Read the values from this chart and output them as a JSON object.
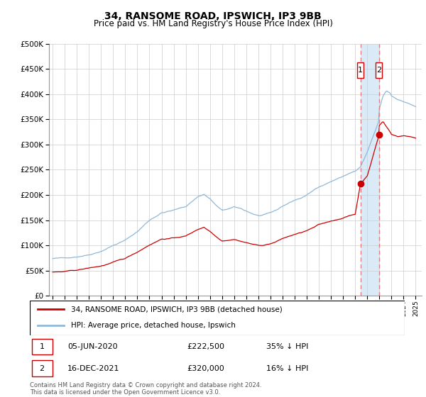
{
  "title": "34, RANSOME ROAD, IPSWICH, IP3 9BB",
  "subtitle": "Price paid vs. HM Land Registry's House Price Index (HPI)",
  "legend_line1": "34, RANSOME ROAD, IPSWICH, IP3 9BB (detached house)",
  "legend_line2": "HPI: Average price, detached house, Ipswich",
  "footer": "Contains HM Land Registry data © Crown copyright and database right 2024.\nThis data is licensed under the Open Government Licence v3.0.",
  "sale1_label": "1",
  "sale1_date": "05-JUN-2020",
  "sale1_price": "£222,500",
  "sale1_pct": "35% ↓ HPI",
  "sale2_label": "2",
  "sale2_date": "16-DEC-2021",
  "sale2_price": "£320,000",
  "sale2_pct": "16% ↓ HPI",
  "hpi_color": "#90b8d8",
  "price_color": "#cc0000",
  "marker_box_color": "#cc0000",
  "shade_color": "#daeaf7",
  "dashed_color": "#e08080",
  "ylim": [
    0,
    500000
  ],
  "yticks": [
    0,
    50000,
    100000,
    150000,
    200000,
    250000,
    300000,
    350000,
    400000,
    450000,
    500000
  ],
  "sale1_year": 2020.43,
  "sale2_year": 2021.96,
  "sale1_price_val": 222500,
  "sale2_price_val": 320000
}
